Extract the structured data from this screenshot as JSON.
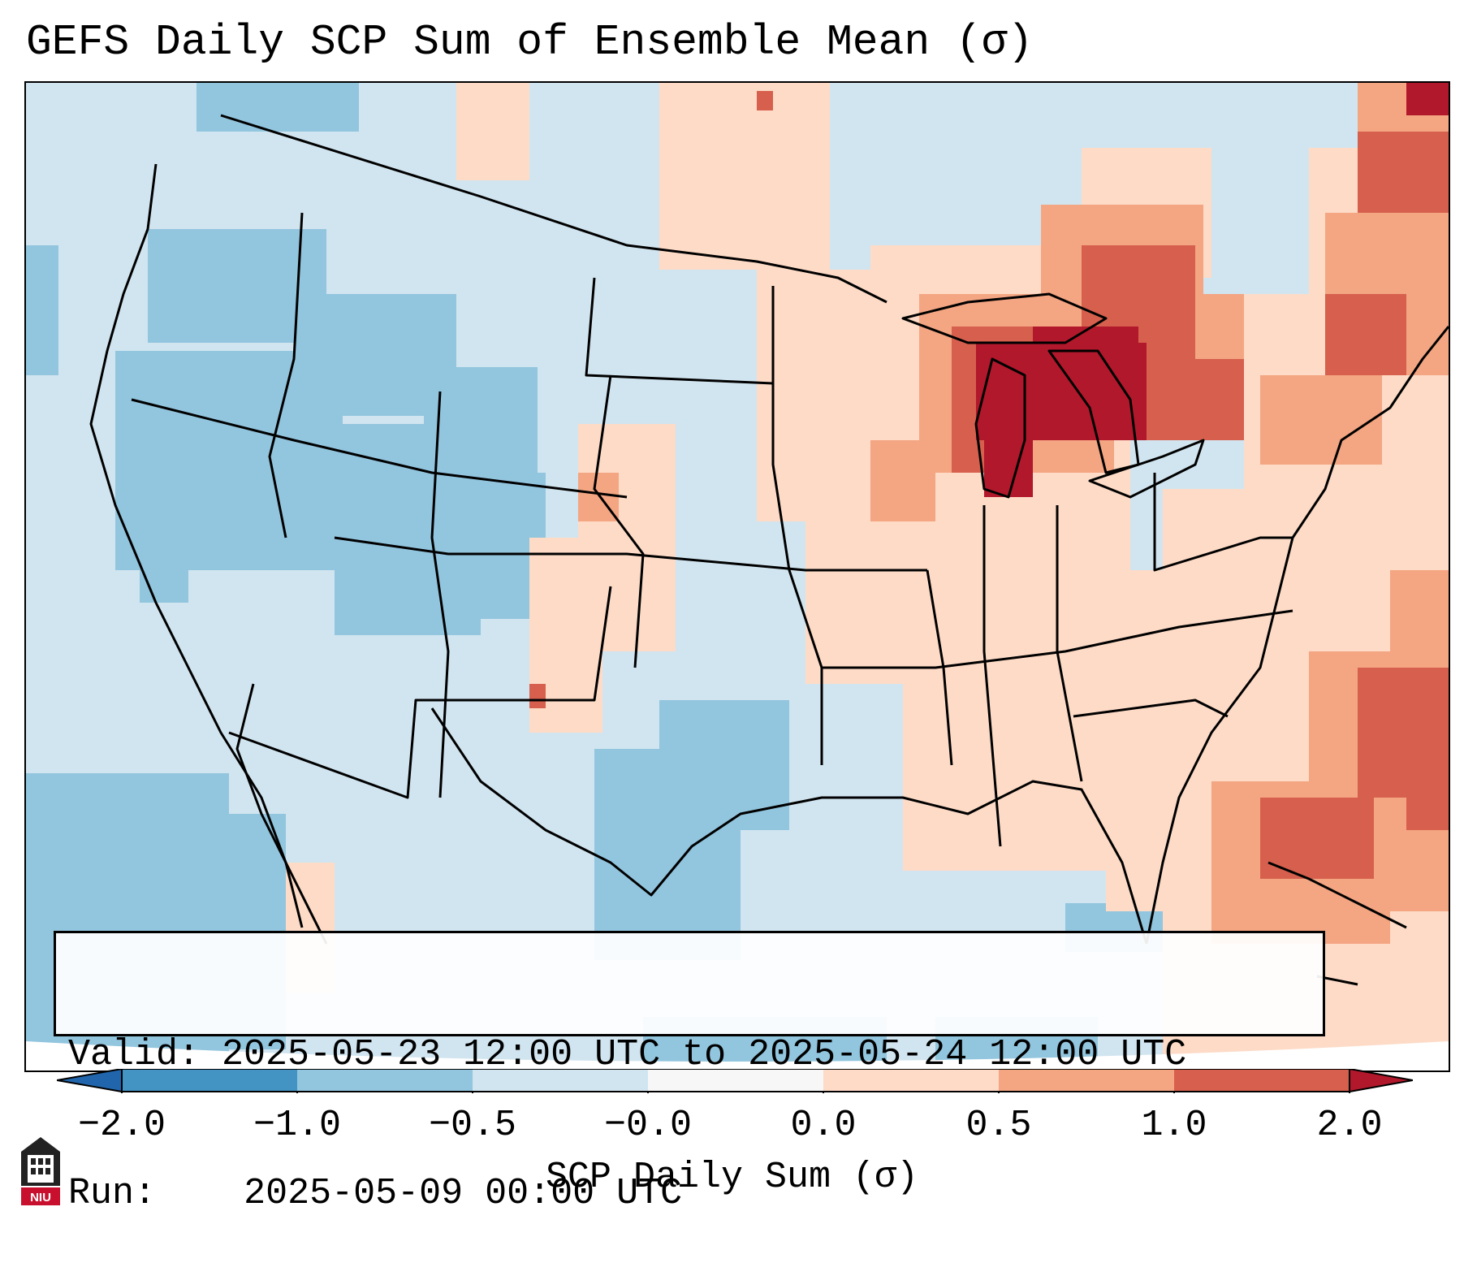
{
  "title": "GEFS Daily SCP Sum of Ensemble Mean (σ)",
  "info": {
    "valid_label": "Valid:",
    "valid_value": "2025-05-23 12:00 UTC to 2025-05-24 12:00 UTC",
    "run_label": "Run:",
    "run_value": "2025-05-09 00:00 UTC"
  },
  "colorbar": {
    "label": "SCP Daily Sum (σ)",
    "ticks": [
      "−2.0",
      "−1.0",
      "−0.5",
      "−0.0",
      "0.0",
      "0.5",
      "1.0",
      "2.0"
    ],
    "bin_colors": [
      "#4393c3",
      "#92c5de",
      "#d1e5f0",
      "#f7f7f7",
      "#fddbc7",
      "#f4a582",
      "#d6604d"
    ],
    "extend_low_color": "#2166ac",
    "extend_high_color": "#b2182b"
  },
  "map": {
    "background_category": "#d1e5f0",
    "field_colors": {
      "strong_negative": "#92c5de",
      "weak_positive": "#fddbc7",
      "moderate_positive": "#f4a582",
      "strong_positive": "#d6604d",
      "very_strong_positive": "#b2182b"
    },
    "regions": [
      "Great Lakes maximum (>2σ)",
      "Ohio Valley / Midwest weak positive",
      "Western Atlantic moderate positive",
      "Intermountain West negative",
      "Eastern Pacific negative"
    ]
  },
  "logo": {
    "text": "NIU",
    "color": "#c8102e"
  }
}
